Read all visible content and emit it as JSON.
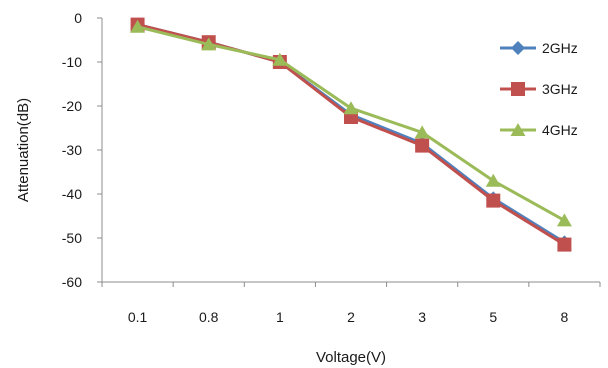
{
  "chart_data": {
    "type": "line",
    "title": "",
    "xlabel": "Voltage(V)",
    "ylabel": "Attenuation(dB)",
    "categories": [
      "0.1",
      "0.8",
      "1",
      "2",
      "3",
      "5",
      "8"
    ],
    "ylim": [
      -60,
      0
    ],
    "yticks": [
      "0",
      "-10",
      "-20",
      "-30",
      "-40",
      "-50",
      "-60"
    ],
    "grid": false,
    "legend_position": "right",
    "series": [
      {
        "name": "2GHz",
        "values": [
          -1.5,
          -5.5,
          -10,
          -22,
          -28.5,
          -41,
          -51
        ],
        "color": "#4f81bd",
        "marker": "diamond"
      },
      {
        "name": "3GHz",
        "values": [
          -1.5,
          -5.5,
          -10,
          -22.5,
          -29,
          -41.5,
          -51.5
        ],
        "color": "#c0504d",
        "marker": "square"
      },
      {
        "name": "4GHz",
        "values": [
          -2,
          -6,
          -9.5,
          -20.5,
          -26,
          -37,
          -46
        ],
        "color": "#9bbb59",
        "marker": "triangle"
      }
    ]
  }
}
